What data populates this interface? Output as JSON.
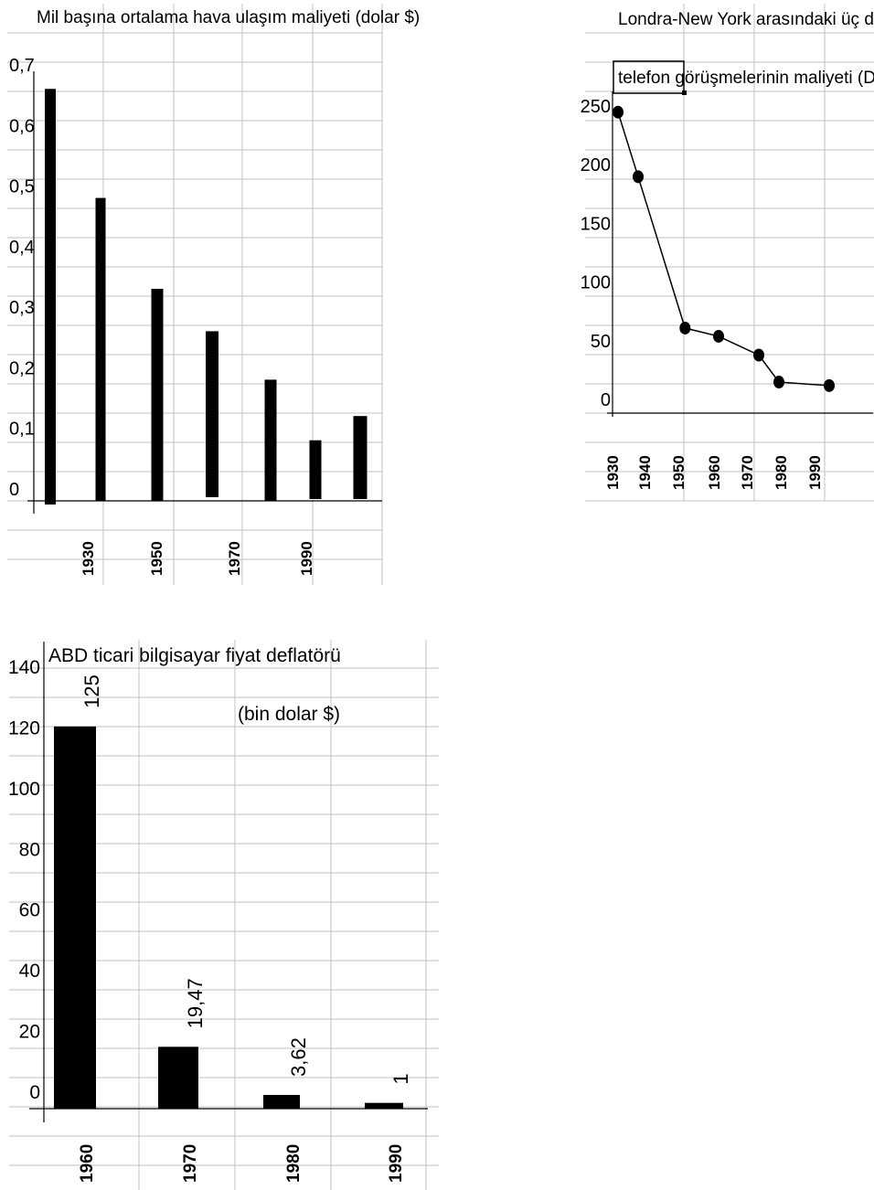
{
  "chart_data": [
    {
      "type": "bar",
      "title": "Mil başına ortalama hava ulaşım maliyeti (dolar $)",
      "x_tick_labels": [
        "1930",
        "1950",
        "1970",
        "1990"
      ],
      "y_tick_labels": [
        "0",
        "0,1",
        "0,2",
        "0,3",
        "0,4",
        "0,5",
        "0,6",
        "0,7"
      ],
      "ylim": [
        0,
        0.7
      ],
      "values": [
        0.68,
        0.5,
        0.35,
        0.28,
        0.2,
        0.1,
        0.14
      ],
      "grid": true,
      "legend": "none"
    },
    {
      "type": "line",
      "title_line1": "Londra-New York arasındaki üç dakikalık",
      "title_line2": "telefon görüşmelerinin maliyeti (Dolar $)",
      "x_tick_labels": [
        "1930",
        "1940",
        "1950",
        "1960",
        "1970",
        "1980",
        "1990"
      ],
      "y_tick_labels": [
        "0",
        "50",
        "100",
        "150",
        "200",
        "250"
      ],
      "ylim": [
        0,
        250
      ],
      "xlim": [
        1930,
        1990
      ],
      "x": [
        1930,
        1936,
        1950,
        1960,
        1972,
        1978,
        1993
      ],
      "y": [
        244,
        189,
        60,
        53,
        37,
        14,
        11
      ],
      "grid": true,
      "legend": "none"
    },
    {
      "type": "bar",
      "title": "ABD ticari bilgisayar fiyat deflatörü",
      "annotation": "(bin dolar $)",
      "categories": [
        "1960",
        "1970",
        "1980",
        "1990"
      ],
      "values": [
        125,
        19.47,
        3.62,
        1
      ],
      "data_labels": [
        "125",
        "19,47",
        "3,62",
        "1"
      ],
      "y_tick_labels": [
        "0",
        "20",
        "40",
        "60",
        "80",
        "100",
        "120",
        "140"
      ],
      "ylim": [
        0,
        140
      ],
      "grid": true,
      "legend": "none"
    }
  ]
}
